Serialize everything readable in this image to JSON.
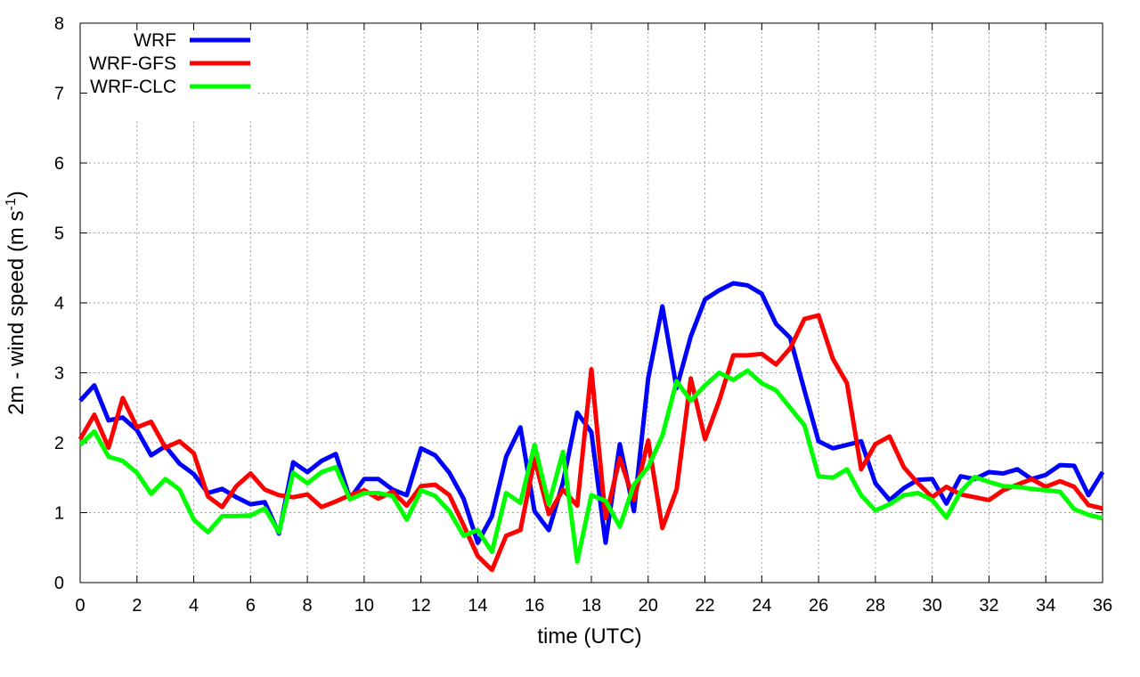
{
  "chart_data": {
    "type": "line",
    "xlabel": "time (UTC)",
    "ylabel": {
      "main": "2m - wind speed  (m s",
      "sup": "-1",
      "close": ")"
    },
    "xlim": [
      0,
      36
    ],
    "ylim": [
      0,
      8
    ],
    "xticks": [
      0,
      2,
      4,
      6,
      8,
      10,
      12,
      14,
      16,
      18,
      20,
      22,
      24,
      26,
      28,
      30,
      32,
      34,
      36
    ],
    "yticks": [
      0,
      1,
      2,
      3,
      4,
      5,
      6,
      7,
      8
    ],
    "grid": true,
    "legend_position": "top-left",
    "x": [
      0,
      0.5,
      1,
      1.5,
      2,
      2.5,
      3,
      3.5,
      4,
      4.5,
      5,
      5.5,
      6,
      6.5,
      7,
      7.5,
      8,
      8.5,
      9,
      9.5,
      10,
      10.5,
      11,
      11.5,
      12,
      12.5,
      13,
      13.5,
      14,
      14.5,
      15,
      15.5,
      16,
      16.5,
      17,
      17.5,
      18,
      18.5,
      19,
      19.5,
      20,
      20.5,
      21,
      21.5,
      22,
      22.5,
      23,
      23.5,
      24,
      24.5,
      25,
      25.5,
      26,
      26.5,
      27,
      27.5,
      28,
      28.5,
      29,
      29.5,
      30,
      30.5,
      31,
      31.5,
      32,
      32.5,
      33,
      33.5,
      34,
      34.5,
      35,
      35.5,
      36
    ],
    "series": [
      {
        "name": "WRF",
        "color": "#0000ff",
        "values": [
          2.6,
          2.82,
          2.32,
          2.36,
          2.18,
          1.82,
          1.95,
          1.7,
          1.55,
          1.28,
          1.34,
          1.22,
          1.12,
          1.15,
          0.7,
          1.72,
          1.58,
          1.74,
          1.84,
          1.2,
          1.48,
          1.48,
          1.33,
          1.25,
          1.92,
          1.82,
          1.57,
          1.2,
          0.57,
          0.95,
          1.8,
          2.22,
          1.02,
          0.75,
          1.43,
          2.43,
          2.15,
          0.57,
          1.98,
          1.02,
          2.92,
          3.95,
          2.78,
          3.52,
          4.05,
          4.18,
          4.28,
          4.25,
          4.13,
          3.7,
          3.5,
          2.75,
          2.02,
          1.92,
          1.97,
          2.02,
          1.42,
          1.18,
          1.35,
          1.47,
          1.48,
          1.13,
          1.52,
          1.48,
          1.58,
          1.56,
          1.62,
          1.48,
          1.54,
          1.68,
          1.67,
          1.25,
          1.58
        ]
      },
      {
        "name": "WRF-GFS",
        "color": "#ff0000",
        "values": [
          2.05,
          2.4,
          1.93,
          2.64,
          2.22,
          2.3,
          1.93,
          2.02,
          1.85,
          1.23,
          1.08,
          1.38,
          1.56,
          1.33,
          1.25,
          1.22,
          1.26,
          1.08,
          1.16,
          1.25,
          1.32,
          1.2,
          1.3,
          1.1,
          1.38,
          1.4,
          1.25,
          0.82,
          0.38,
          0.18,
          0.67,
          0.75,
          1.77,
          0.98,
          1.33,
          1.1,
          3.05,
          0.92,
          1.78,
          1.18,
          2.03,
          0.78,
          1.33,
          2.92,
          2.05,
          2.6,
          3.25,
          3.25,
          3.27,
          3.12,
          3.35,
          3.77,
          3.82,
          3.2,
          2.85,
          1.62,
          1.98,
          2.09,
          1.65,
          1.42,
          1.22,
          1.37,
          1.26,
          1.22,
          1.18,
          1.32,
          1.4,
          1.48,
          1.37,
          1.45,
          1.37,
          1.11,
          1.06
        ]
      },
      {
        "name": "WRF-CLC",
        "color": "#00ff00",
        "values": [
          1.97,
          2.16,
          1.8,
          1.74,
          1.57,
          1.27,
          1.48,
          1.33,
          0.9,
          0.72,
          0.95,
          0.95,
          0.96,
          1.06,
          0.72,
          1.57,
          1.42,
          1.58,
          1.65,
          1.19,
          1.28,
          1.28,
          1.24,
          0.9,
          1.32,
          1.24,
          1.02,
          0.67,
          0.75,
          0.44,
          1.28,
          1.14,
          1.97,
          1.12,
          1.87,
          0.3,
          1.25,
          1.17,
          0.8,
          1.4,
          1.65,
          2.1,
          2.88,
          2.6,
          2.82,
          3.0,
          2.9,
          3.03,
          2.85,
          2.75,
          2.5,
          2.25,
          1.52,
          1.5,
          1.62,
          1.25,
          1.03,
          1.12,
          1.25,
          1.28,
          1.18,
          0.93,
          1.3,
          1.51,
          1.44,
          1.38,
          1.37,
          1.34,
          1.32,
          1.3,
          1.05,
          0.97,
          0.92
        ]
      }
    ]
  }
}
